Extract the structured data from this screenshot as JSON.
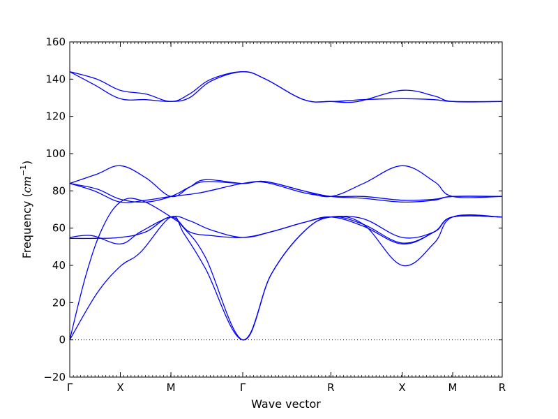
{
  "chart_data": {
    "type": "line",
    "title": "",
    "xlabel": "Wave vector",
    "ylabel": "Frequency (",
    "ylabel_unit": "cm",
    "ylabel_exp": "−1",
    "ylabel_close": ")",
    "ylim": [
      -20,
      160
    ],
    "yticks": [
      -20,
      0,
      20,
      40,
      60,
      80,
      100,
      120,
      140,
      160
    ],
    "ytick_labels": [
      "−20",
      "0",
      "20",
      "40",
      "60",
      "80",
      "100",
      "120",
      "140",
      "160"
    ],
    "xlim": [
      0,
      7.95
    ],
    "high_symmetry_points": [
      {
        "label": "Γ",
        "x": 0
      },
      {
        "label": "X",
        "x": 0.93
      },
      {
        "label": "M",
        "x": 1.86
      },
      {
        "label": "Γ",
        "x": 3.18
      },
      {
        "label": "R",
        "x": 4.8
      },
      {
        "label": "X",
        "x": 6.11
      },
      {
        "label": "M",
        "x": 7.04
      },
      {
        "label": "R",
        "x": 7.95
      }
    ],
    "zero_line": {
      "y": 0,
      "style": "dotted"
    },
    "grid": false,
    "line_color": "#0000ff",
    "series": [
      {
        "x": [
          0,
          0.5,
          0.93,
          1.4,
          1.86,
          2.2,
          2.6,
          3.18,
          3.6,
          4.3,
          4.8,
          5.3,
          6.11,
          6.7,
          7.04,
          7.95
        ],
        "y": [
          144,
          140,
          134,
          132,
          128,
          132,
          140,
          144,
          140,
          129,
          128,
          128,
          134,
          131,
          128,
          128
        ]
      },
      {
        "x": [
          0,
          0.45,
          0.93,
          1.4,
          1.86,
          2.2,
          2.6,
          3.18,
          3.6,
          4.3,
          4.8,
          5.4,
          6.11,
          6.7,
          7.04,
          7.95
        ],
        "y": [
          144,
          137,
          129.5,
          129,
          128,
          130,
          139,
          144,
          140,
          129,
          128,
          129,
          129.5,
          129,
          128,
          128
        ]
      },
      {
        "x": [
          0,
          0.5,
          0.93,
          1.4,
          1.86,
          2.2,
          2.5,
          3.18,
          3.6,
          4.3,
          4.8,
          5.4,
          6.11,
          6.7,
          7.04,
          7.95
        ],
        "y": [
          84,
          89,
          93.5,
          87,
          77,
          82,
          86,
          84,
          85,
          80,
          77,
          84,
          93.5,
          85,
          77,
          77
        ]
      },
      {
        "x": [
          0,
          0.5,
          0.93,
          1.4,
          1.86,
          2.2,
          2.5,
          3.18,
          3.6,
          4.3,
          4.8,
          5.4,
          6.11,
          6.7,
          7.04,
          7.95
        ],
        "y": [
          84,
          81,
          75.5,
          74,
          77,
          82,
          85,
          84,
          85,
          80,
          77,
          76,
          74,
          75,
          77,
          77
        ]
      },
      {
        "x": [
          0,
          0.45,
          0.93,
          1.4,
          1.86,
          2.4,
          3.18,
          3.6,
          4.3,
          4.8,
          5.4,
          6.11,
          6.7,
          7.04,
          7.95
        ],
        "y": [
          84,
          80,
          74,
          75,
          77,
          79,
          84,
          84.5,
          79,
          77,
          77,
          75,
          75.5,
          77,
          77
        ]
      },
      {
        "x": [
          0,
          0.3,
          0.6,
          0.93,
          1.3,
          1.86,
          2.1,
          2.5,
          3.18,
          3.7,
          4.3,
          4.8,
          5.4,
          6.11,
          6.7,
          7.04,
          7.95
        ],
        "y": [
          0,
          35,
          60,
          74,
          75,
          66,
          60,
          44,
          0,
          35,
          58,
          66,
          62,
          52,
          58,
          66,
          66
        ]
      },
      {
        "x": [
          0,
          0.5,
          0.93,
          1.3,
          1.86,
          2.1,
          2.5,
          3.18,
          3.7,
          4.3,
          4.8,
          5.4,
          6.11,
          6.7,
          7.04,
          7.95
        ],
        "y": [
          0,
          25,
          39.5,
          47,
          66,
          57,
          38,
          0,
          35,
          58,
          66,
          62,
          40,
          52,
          66,
          66
        ]
      },
      {
        "x": [
          0,
          0.4,
          0.93,
          1.3,
          1.86,
          2.2,
          2.6,
          3.18,
          3.7,
          4.3,
          4.8,
          5.4,
          6.11,
          6.7,
          7.04,
          7.95
        ],
        "y": [
          55,
          56,
          51.5,
          58,
          66,
          64,
          59,
          55,
          58,
          63,
          66,
          65,
          55,
          58,
          66,
          66
        ]
      },
      {
        "x": [
          0,
          0.45,
          0.93,
          1.4,
          1.86,
          2.2,
          2.6,
          3.18,
          3.7,
          4.3,
          4.8,
          5.4,
          6.11,
          6.7,
          7.04,
          7.95
        ],
        "y": [
          54.5,
          54.5,
          55,
          58,
          66,
          58,
          56,
          55,
          58,
          63,
          66,
          61,
          51.5,
          58,
          66,
          66
        ]
      }
    ]
  }
}
